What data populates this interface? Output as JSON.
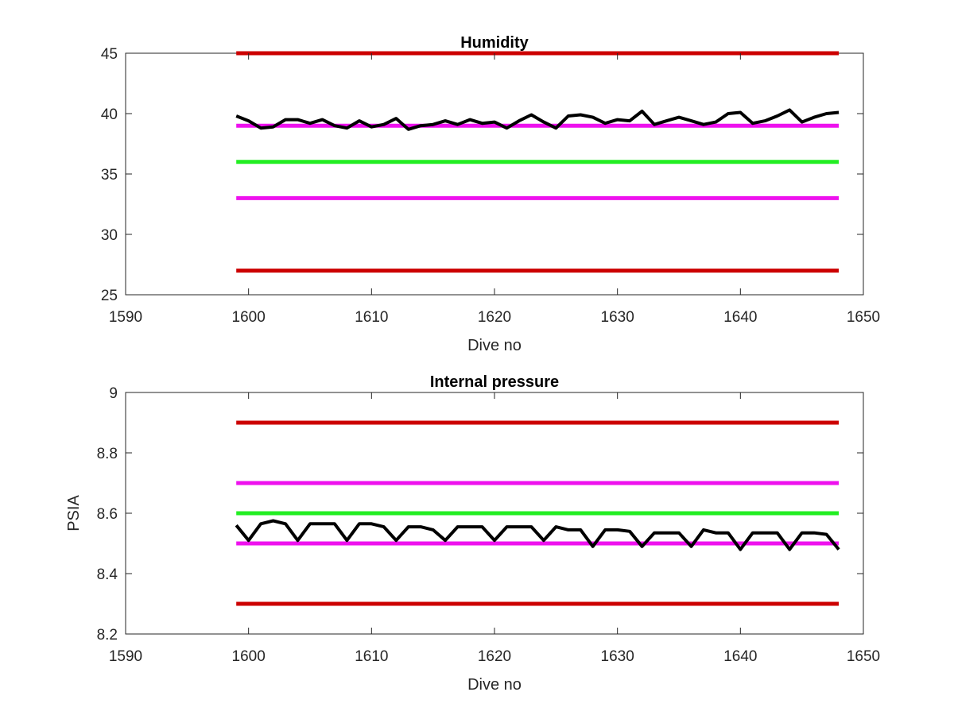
{
  "colors": {
    "red": "#cc0000",
    "magenta": "#ee11ee",
    "green": "#22ee22",
    "series": "#000000",
    "axis": "#262626"
  },
  "chart_data": [
    {
      "type": "line",
      "title": "Humidity",
      "xlabel": "Dive no",
      "ylabel": "",
      "xlim": [
        1590,
        1650
      ],
      "ylim": [
        25,
        45
      ],
      "xticks": [
        "1590",
        "1600",
        "1610",
        "1620",
        "1630",
        "1640",
        "1650"
      ],
      "yticks": [
        "25",
        "30",
        "35",
        "40",
        "45"
      ],
      "grid": false,
      "reference_lines": [
        {
          "y": 45,
          "color": "red",
          "x": [
            1599,
            1648
          ]
        },
        {
          "y": 39,
          "color": "magenta",
          "x": [
            1599,
            1648
          ]
        },
        {
          "y": 36,
          "color": "green",
          "x": [
            1599,
            1648
          ]
        },
        {
          "y": 33,
          "color": "magenta",
          "x": [
            1599,
            1648
          ]
        },
        {
          "y": 27,
          "color": "red",
          "x": [
            1599,
            1648
          ]
        }
      ],
      "series": [
        {
          "color": "series",
          "x": [
            1599,
            1600,
            1601,
            1602,
            1603,
            1604,
            1605,
            1606,
            1607,
            1608,
            1609,
            1610,
            1611,
            1612,
            1613,
            1614,
            1615,
            1616,
            1617,
            1618,
            1619,
            1620,
            1621,
            1622,
            1623,
            1624,
            1625,
            1626,
            1627,
            1628,
            1629,
            1630,
            1631,
            1632,
            1633,
            1634,
            1635,
            1636,
            1637,
            1638,
            1639,
            1640,
            1641,
            1642,
            1643,
            1644,
            1645,
            1646,
            1647,
            1648
          ],
          "values": [
            39.8,
            39.4,
            38.8,
            38.9,
            39.5,
            39.5,
            39.2,
            39.5,
            39.0,
            38.8,
            39.4,
            38.9,
            39.1,
            39.6,
            38.7,
            39.0,
            39.1,
            39.4,
            39.1,
            39.5,
            39.2,
            39.3,
            38.8,
            39.4,
            39.9,
            39.3,
            38.8,
            39.8,
            39.9,
            39.7,
            39.2,
            39.5,
            39.4,
            40.2,
            39.1,
            39.4,
            39.7,
            39.4,
            39.1,
            39.3,
            40.0,
            40.1,
            39.2,
            39.4,
            39.8,
            40.3,
            39.3,
            39.7,
            40.0,
            40.1
          ]
        }
      ]
    },
    {
      "type": "line",
      "title": "Internal pressure",
      "xlabel": "Dive no",
      "ylabel": "PSIA",
      "xlim": [
        1590,
        1650
      ],
      "ylim": [
        8.2,
        9.0
      ],
      "xticks": [
        "1590",
        "1600",
        "1610",
        "1620",
        "1630",
        "1640",
        "1650"
      ],
      "yticks": [
        "8.2",
        "8.4",
        "8.6",
        "8.8",
        "9"
      ],
      "grid": false,
      "reference_lines": [
        {
          "y": 8.9,
          "color": "red",
          "x": [
            1599,
            1648
          ]
        },
        {
          "y": 8.7,
          "color": "magenta",
          "x": [
            1599,
            1648
          ]
        },
        {
          "y": 8.6,
          "color": "green",
          "x": [
            1599,
            1648
          ]
        },
        {
          "y": 8.5,
          "color": "magenta",
          "x": [
            1599,
            1648
          ]
        },
        {
          "y": 8.3,
          "color": "red",
          "x": [
            1599,
            1648
          ]
        }
      ],
      "series": [
        {
          "color": "series",
          "x": [
            1599,
            1600,
            1601,
            1602,
            1603,
            1604,
            1605,
            1606,
            1607,
            1608,
            1609,
            1610,
            1611,
            1612,
            1613,
            1614,
            1615,
            1616,
            1617,
            1618,
            1619,
            1620,
            1621,
            1622,
            1623,
            1624,
            1625,
            1626,
            1627,
            1628,
            1629,
            1630,
            1631,
            1632,
            1633,
            1634,
            1635,
            1636,
            1637,
            1638,
            1639,
            1640,
            1641,
            1642,
            1643,
            1644,
            1645,
            1646,
            1647,
            1648
          ],
          "values": [
            8.56,
            8.51,
            8.565,
            8.575,
            8.565,
            8.51,
            8.565,
            8.565,
            8.565,
            8.51,
            8.565,
            8.565,
            8.555,
            8.51,
            8.555,
            8.555,
            8.545,
            8.51,
            8.555,
            8.555,
            8.555,
            8.51,
            8.555,
            8.555,
            8.555,
            8.51,
            8.555,
            8.545,
            8.545,
            8.49,
            8.545,
            8.545,
            8.54,
            8.49,
            8.535,
            8.535,
            8.535,
            8.49,
            8.545,
            8.535,
            8.535,
            8.48,
            8.535,
            8.535,
            8.535,
            8.48,
            8.535,
            8.535,
            8.53,
            8.48
          ]
        }
      ]
    }
  ]
}
